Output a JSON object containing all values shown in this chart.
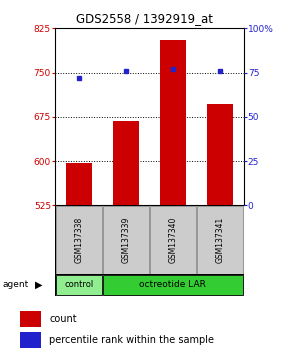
{
  "title": "GDS2558 / 1392919_at",
  "samples": [
    "GSM137338",
    "GSM137339",
    "GSM137340",
    "GSM137341"
  ],
  "counts": [
    597,
    668,
    805,
    697
  ],
  "percentiles": [
    72,
    76,
    77,
    76
  ],
  "ylim_left": [
    525,
    825
  ],
  "ylim_right": [
    0,
    100
  ],
  "yticks_left": [
    525,
    600,
    675,
    750,
    825
  ],
  "yticks_right": [
    0,
    25,
    50,
    75,
    100
  ],
  "ytick_right_labels": [
    "0",
    "25",
    "50",
    "75",
    "100%"
  ],
  "bar_color": "#cc0000",
  "dot_color": "#2222cc",
  "control_color": "#90ee90",
  "oct_color": "#33cc33",
  "agent_label": "agent",
  "legend_count_label": "count",
  "legend_pct_label": "percentile rank within the sample",
  "background_color": "#ffffff",
  "sample_box_color": "#cccccc",
  "gridline_yticks": [
    600,
    675,
    750
  ]
}
